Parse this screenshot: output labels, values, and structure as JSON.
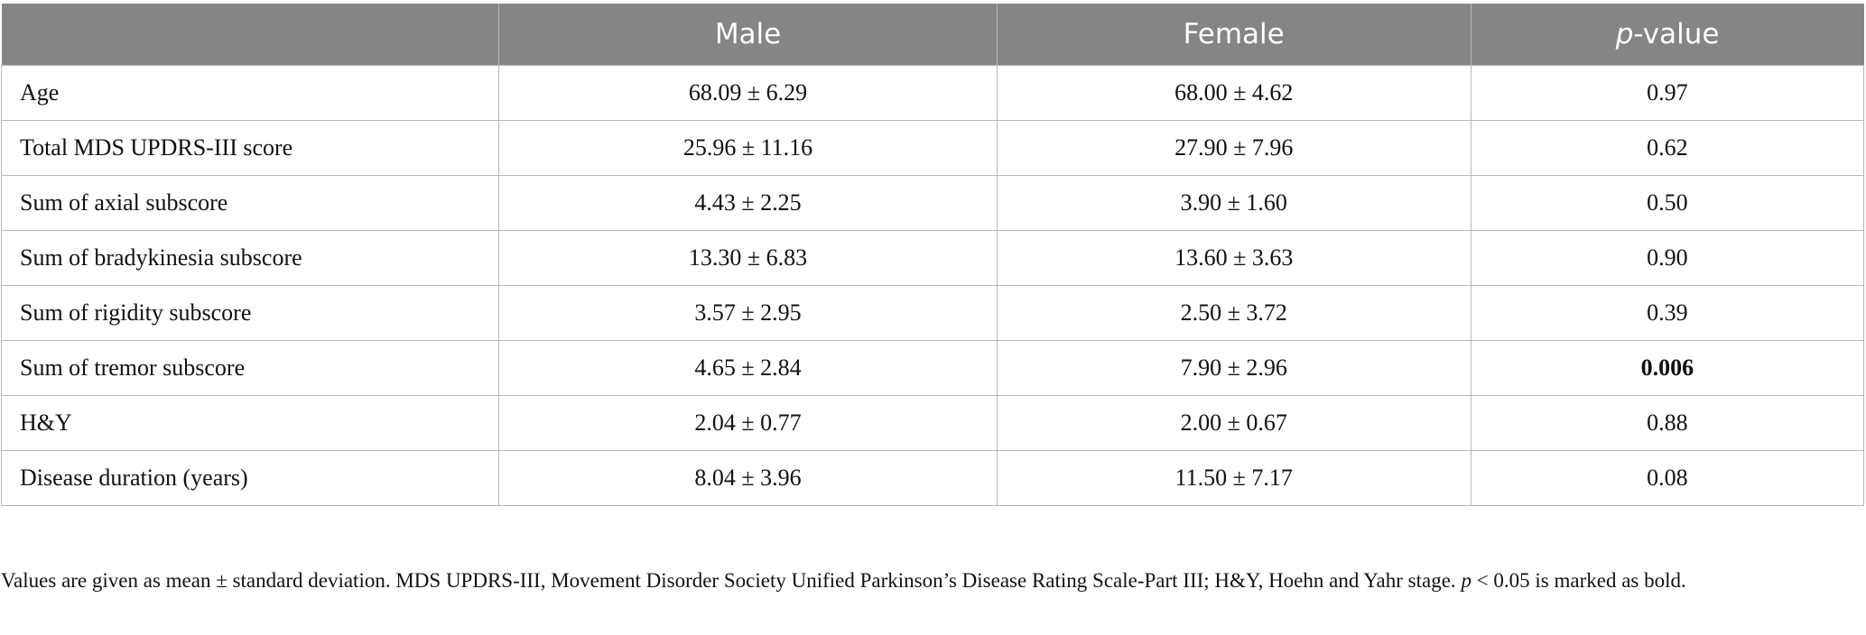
{
  "table": {
    "headers": {
      "col0": "",
      "col1": "Male",
      "col2": "Female",
      "col3_italic": "p",
      "col3_rest": "-value"
    },
    "rows": [
      {
        "label": "Age",
        "male": "68.09 ± 6.29",
        "female": "68.00 ± 4.62",
        "p": "0.97",
        "bold": false
      },
      {
        "label": "Total MDS UPDRS-III score",
        "male": "25.96 ± 11.16",
        "female": "27.90 ± 7.96",
        "p": "0.62",
        "bold": false
      },
      {
        "label": "Sum of axial subscore",
        "male": "4.43 ± 2.25",
        "female": "3.90 ± 1.60",
        "p": "0.50",
        "bold": false
      },
      {
        "label": "Sum of bradykinesia subscore",
        "male": "13.30 ± 6.83",
        "female": "13.60 ± 3.63",
        "p": "0.90",
        "bold": false
      },
      {
        "label": "Sum of rigidity subscore",
        "male": "3.57 ± 2.95",
        "female": "2.50 ± 3.72",
        "p": "0.39",
        "bold": false
      },
      {
        "label": "Sum of tremor subscore",
        "male": "4.65 ± 2.84",
        "female": "7.90 ± 2.96",
        "p": "0.006",
        "bold": true
      },
      {
        "label": "H&Y",
        "male": "2.04 ± 0.77",
        "female": "2.00 ± 0.67",
        "p": "0.88",
        "bold": false
      },
      {
        "label": "Disease duration (years)",
        "male": "8.04 ± 3.96",
        "female": "11.50 ± 7.17",
        "p": "0.08",
        "bold": false
      }
    ]
  },
  "footnote": {
    "part1": "Values are given as mean ± standard deviation. MDS UPDRS-III, Movement Disorder Society Unified Parkinson’s Disease Rating Scale-Part III; H&Y, Hoehn and Yahr stage. ",
    "p_italic": "p",
    "part2": " < 0.05 is marked as bold."
  },
  "colors": {
    "header_bg": "#858585",
    "header_text": "#ffffff",
    "border": "#b8b8b8"
  }
}
